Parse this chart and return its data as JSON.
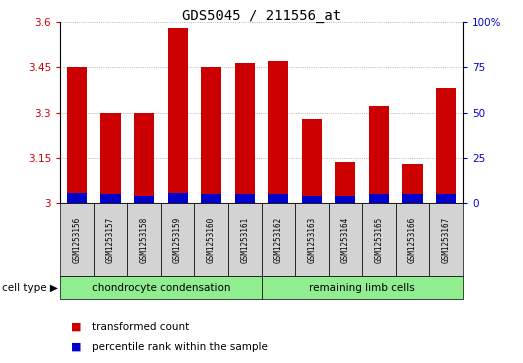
{
  "title": "GDS5045 / 211556_at",
  "samples": [
    "GSM1253156",
    "GSM1253157",
    "GSM1253158",
    "GSM1253159",
    "GSM1253160",
    "GSM1253161",
    "GSM1253162",
    "GSM1253163",
    "GSM1253164",
    "GSM1253165",
    "GSM1253166",
    "GSM1253167"
  ],
  "transformed_count": [
    3.45,
    3.3,
    3.3,
    3.58,
    3.45,
    3.465,
    3.47,
    3.28,
    3.135,
    3.32,
    3.13,
    3.38
  ],
  "percentile_rank_abs": [
    3.035,
    3.03,
    3.025,
    3.035,
    3.03,
    3.03,
    3.03,
    3.025,
    3.025,
    3.03,
    3.03,
    3.03
  ],
  "bar_base": 3.0,
  "ylim_left": [
    3.0,
    3.6
  ],
  "ylim_right": [
    0,
    100
  ],
  "yticks_left": [
    3.0,
    3.15,
    3.3,
    3.45,
    3.6
  ],
  "yticks_right": [
    0,
    25,
    50,
    75,
    100
  ],
  "ytick_labels_left": [
    "3",
    "3.15",
    "3.3",
    "3.45",
    "3.6"
  ],
  "ytick_labels_right": [
    "0",
    "25",
    "50",
    "75",
    "100%"
  ],
  "groups": [
    {
      "label": "chondrocyte condensation",
      "start": 0,
      "end": 5,
      "color": "#90EE90"
    },
    {
      "label": "remaining limb cells",
      "start": 6,
      "end": 11,
      "color": "#90EE90"
    }
  ],
  "cell_type_label": "cell type",
  "legend_items": [
    {
      "label": "transformed count",
      "color": "#CC0000"
    },
    {
      "label": "percentile rank within the sample",
      "color": "#0000CC"
    }
  ],
  "bar_color_red": "#CC0000",
  "bar_color_blue": "#0000CC",
  "bar_width": 0.6,
  "grid_color": "#888888",
  "background_label": "#D3D3D3",
  "background_group": "#90EE90"
}
